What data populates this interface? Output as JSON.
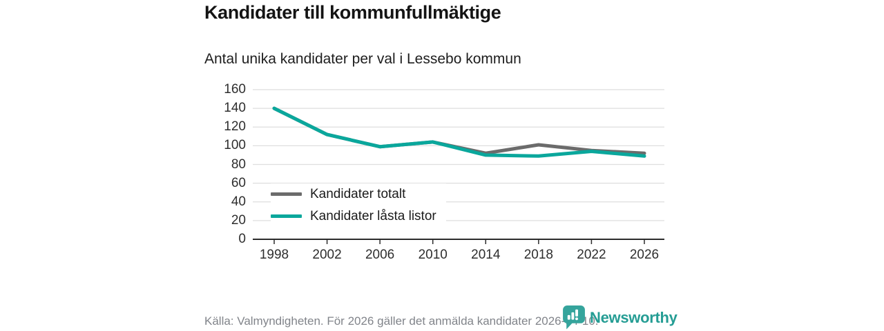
{
  "header": {
    "title": "Kandidater till kommunfullmäktige",
    "subtitle": "Antal unika kandidater per val i Lessebo kommun"
  },
  "chart_data": {
    "type": "line",
    "title": "Kandidater till kommunfullmäktige",
    "subtitle": "Antal unika kandidater per val i Lessebo kommun",
    "categories": [
      "1998",
      "2002",
      "2006",
      "2010",
      "2014",
      "2018",
      "2022",
      "2026"
    ],
    "series": [
      {
        "name": "Kandidater totalt",
        "color": "#6b6b6b",
        "values": [
          140,
          112,
          99,
          104,
          92,
          101,
          95,
          92
        ]
      },
      {
        "name": "Kandidater låsta listor",
        "color": "#0aa79c",
        "values": [
          140,
          112,
          99,
          104,
          90,
          89,
          94,
          89
        ]
      }
    ],
    "xlabel": "",
    "ylabel": "",
    "ylim": [
      0,
      160
    ],
    "ytick_step": 20,
    "grid": true,
    "legend_position": "inside-bottom-left"
  },
  "colors": {
    "grid": "#dedede",
    "axis": "#2b2b2b",
    "tick_label": "#2e2e2e",
    "footer_text": "#81848a",
    "brand_teal": "#259d94"
  },
  "footer": {
    "source": "Källa: Valmyndigheten. För 2026 gäller det anmälda kandidater 2026-04-10.",
    "brand": "Newsworthy"
  }
}
